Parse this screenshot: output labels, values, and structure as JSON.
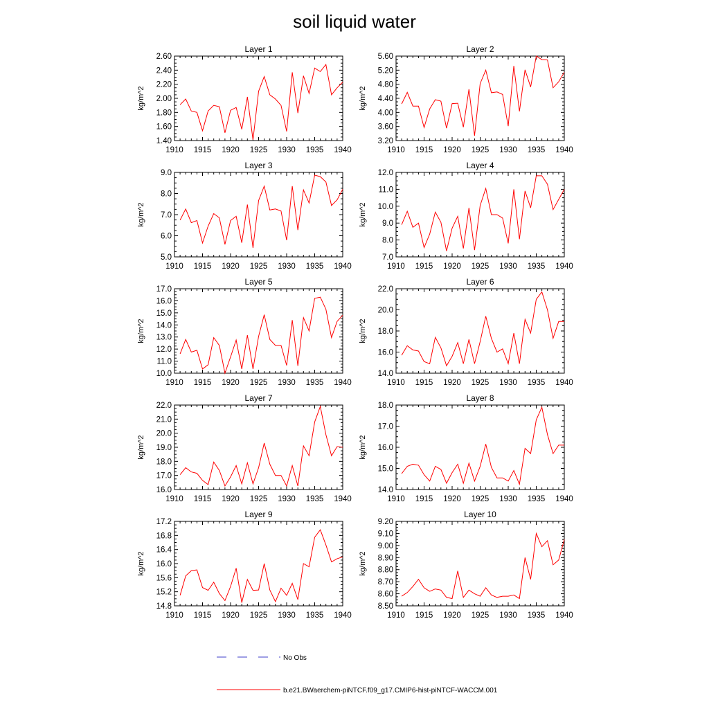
{
  "figure": {
    "title": "soil liquid water",
    "legend": [
      {
        "label": "No Obs",
        "color": "#3c3cc8",
        "style": "dashed"
      },
      {
        "label": "b.e21.BWaerchem-piNTCF.f09_g17.CMIP6-hist-piNTCF-WACCM.001",
        "color": "#ff0000",
        "style": "solid"
      }
    ]
  },
  "chart_data": [
    {
      "type": "line",
      "title": "Layer 1",
      "ylabel": "kg/m^2",
      "xlim": [
        1910,
        1940
      ],
      "xticks": [
        1910,
        1915,
        1920,
        1925,
        1930,
        1935,
        1940
      ],
      "ylim": [
        1.4,
        2.6
      ],
      "yticks": [
        "1.40",
        "1.60",
        "1.80",
        "2.00",
        "2.20",
        "2.40",
        "2.60"
      ],
      "series": [
        {
          "color": "#ff0000",
          "x": [
            1911,
            1912,
            1913,
            1914,
            1915,
            1916,
            1917,
            1918,
            1919,
            1920,
            1921,
            1922,
            1923,
            1924,
            1925,
            1926,
            1927,
            1928,
            1929,
            1930,
            1931,
            1932,
            1933,
            1934,
            1935,
            1936,
            1937,
            1938,
            1939,
            1940
          ],
          "y": [
            1.91,
            1.99,
            1.82,
            1.8,
            1.54,
            1.82,
            1.9,
            1.88,
            1.51,
            1.83,
            1.87,
            1.56,
            2.02,
            1.41,
            2.1,
            2.31,
            2.05,
            1.99,
            1.9,
            1.53,
            2.37,
            1.79,
            2.32,
            2.07,
            2.43,
            2.38,
            2.48,
            2.05,
            2.15,
            2.23
          ]
        }
      ]
    },
    {
      "type": "line",
      "title": "Layer 2",
      "ylabel": "kg/m^2",
      "xlim": [
        1910,
        1940
      ],
      "xticks": [
        1910,
        1915,
        1920,
        1925,
        1930,
        1935,
        1940
      ],
      "ylim": [
        3.2,
        5.6
      ],
      "yticks": [
        "3.20",
        "3.60",
        "4.00",
        "4.40",
        "4.80",
        "5.20",
        "5.60"
      ],
      "series": [
        {
          "color": "#ff0000",
          "x": [
            1911,
            1912,
            1913,
            1914,
            1915,
            1916,
            1917,
            1918,
            1919,
            1920,
            1921,
            1922,
            1923,
            1924,
            1925,
            1926,
            1927,
            1928,
            1929,
            1930,
            1931,
            1932,
            1933,
            1934,
            1935,
            1936,
            1937,
            1938,
            1939,
            1940
          ],
          "y": [
            4.24,
            4.57,
            4.18,
            4.18,
            3.57,
            4.1,
            4.36,
            4.32,
            3.55,
            4.25,
            4.26,
            3.58,
            4.66,
            3.34,
            4.82,
            5.2,
            4.56,
            4.58,
            4.51,
            3.61,
            5.32,
            4.03,
            5.21,
            4.72,
            5.6,
            5.5,
            5.49,
            4.7,
            4.87,
            5.14
          ]
        }
      ]
    },
    {
      "type": "line",
      "title": "Layer 3",
      "ylabel": "kg/m^2",
      "xlim": [
        1910,
        1940
      ],
      "xticks": [
        1910,
        1915,
        1920,
        1925,
        1930,
        1935,
        1940
      ],
      "ylim": [
        5.0,
        9.0
      ],
      "yticks": [
        "5.0",
        "6.0",
        "7.0",
        "8.0",
        "9.0"
      ],
      "series": [
        {
          "color": "#ff0000",
          "x": [
            1911,
            1912,
            1913,
            1914,
            1915,
            1916,
            1917,
            1918,
            1919,
            1920,
            1921,
            1922,
            1923,
            1924,
            1925,
            1926,
            1927,
            1928,
            1929,
            1930,
            1931,
            1932,
            1933,
            1934,
            1935,
            1936,
            1937,
            1938,
            1939,
            1940
          ],
          "y": [
            6.74,
            7.27,
            6.62,
            6.72,
            5.66,
            6.46,
            7.05,
            6.85,
            5.59,
            6.72,
            6.92,
            5.67,
            7.48,
            5.43,
            7.67,
            8.35,
            7.22,
            7.27,
            7.17,
            5.79,
            8.35,
            6.27,
            8.17,
            7.55,
            8.87,
            8.8,
            8.55,
            7.43,
            7.7,
            8.2
          ]
        }
      ]
    },
    {
      "type": "line",
      "title": "Layer 4",
      "ylabel": "kg/m^2",
      "xlim": [
        1910,
        1940
      ],
      "xticks": [
        1910,
        1915,
        1920,
        1925,
        1930,
        1935,
        1940
      ],
      "ylim": [
        7.0,
        12.0
      ],
      "yticks": [
        "7.0",
        "8.0",
        "9.0",
        "10.0",
        "11.0",
        "12.0"
      ],
      "series": [
        {
          "color": "#ff0000",
          "x": [
            1911,
            1912,
            1913,
            1914,
            1915,
            1916,
            1917,
            1918,
            1919,
            1920,
            1921,
            1922,
            1923,
            1924,
            1925,
            1926,
            1927,
            1928,
            1929,
            1930,
            1931,
            1932,
            1933,
            1934,
            1935,
            1936,
            1937,
            1938,
            1939,
            1940
          ],
          "y": [
            8.9,
            9.7,
            8.75,
            9.0,
            7.55,
            8.35,
            9.65,
            9.05,
            7.35,
            8.7,
            9.4,
            7.5,
            9.9,
            7.4,
            10.05,
            11.05,
            9.5,
            9.5,
            9.3,
            7.8,
            11.0,
            8.05,
            10.9,
            9.9,
            11.8,
            11.8,
            11.3,
            9.8,
            10.4,
            11.0
          ]
        }
      ]
    },
    {
      "type": "line",
      "title": "Layer 5",
      "ylabel": "kg/m^2",
      "xlim": [
        1910,
        1940
      ],
      "xticks": [
        1910,
        1915,
        1920,
        1925,
        1930,
        1935,
        1940
      ],
      "ylim": [
        10.0,
        17.0
      ],
      "yticks": [
        "10.0",
        "11.0",
        "12.0",
        "13.0",
        "14.0",
        "15.0",
        "16.0",
        "17.0"
      ],
      "series": [
        {
          "color": "#ff0000",
          "x": [
            1911,
            1912,
            1913,
            1914,
            1915,
            1916,
            1917,
            1918,
            1919,
            1920,
            1921,
            1922,
            1923,
            1924,
            1925,
            1926,
            1927,
            1928,
            1929,
            1930,
            1931,
            1932,
            1933,
            1934,
            1935,
            1936,
            1937,
            1938,
            1939,
            1940
          ],
          "y": [
            11.6,
            12.8,
            11.75,
            11.9,
            10.35,
            10.7,
            12.95,
            12.3,
            10.0,
            11.35,
            12.75,
            10.35,
            13.15,
            10.35,
            13.05,
            14.85,
            12.8,
            12.3,
            12.3,
            10.65,
            14.4,
            10.6,
            14.6,
            13.5,
            16.2,
            16.3,
            15.3,
            12.95,
            14.3,
            14.8
          ]
        }
      ]
    },
    {
      "type": "line",
      "title": "Layer 6",
      "ylabel": "kg/m^2",
      "xlim": [
        1910,
        1940
      ],
      "xticks": [
        1910,
        1915,
        1920,
        1925,
        1930,
        1935,
        1940
      ],
      "ylim": [
        14.0,
        22.0
      ],
      "yticks": [
        "14.0",
        "16.0",
        "18.0",
        "20.0",
        "22.0"
      ],
      "series": [
        {
          "color": "#ff0000",
          "x": [
            1911,
            1912,
            1913,
            1914,
            1915,
            1916,
            1917,
            1918,
            1919,
            1920,
            1921,
            1922,
            1923,
            1924,
            1925,
            1926,
            1927,
            1928,
            1929,
            1930,
            1931,
            1932,
            1933,
            1934,
            1935,
            1936,
            1937,
            1938,
            1939,
            1940
          ],
          "y": [
            15.7,
            16.6,
            16.2,
            16.1,
            15.1,
            14.9,
            17.4,
            16.4,
            14.7,
            15.6,
            16.9,
            14.9,
            17.2,
            14.9,
            17.0,
            19.4,
            17.3,
            16.0,
            16.3,
            14.9,
            17.8,
            14.9,
            19.1,
            17.8,
            21.0,
            21.7,
            20.0,
            17.3,
            18.9,
            18.9
          ]
        }
      ]
    },
    {
      "type": "line",
      "title": "Layer 7",
      "ylabel": "kg/m^2",
      "xlim": [
        1910,
        1940
      ],
      "xticks": [
        1910,
        1915,
        1920,
        1925,
        1930,
        1935,
        1940
      ],
      "ylim": [
        16.0,
        22.0
      ],
      "yticks": [
        "16.0",
        "17.0",
        "18.0",
        "19.0",
        "20.0",
        "21.0",
        "22.0"
      ],
      "series": [
        {
          "color": "#ff0000",
          "x": [
            1911,
            1912,
            1913,
            1914,
            1915,
            1916,
            1917,
            1918,
            1919,
            1920,
            1921,
            1922,
            1923,
            1924,
            1925,
            1926,
            1927,
            1928,
            1929,
            1930,
            1931,
            1932,
            1933,
            1934,
            1935,
            1936,
            1937,
            1938,
            1939,
            1940
          ],
          "y": [
            17.05,
            17.55,
            17.25,
            17.15,
            16.65,
            16.35,
            17.95,
            17.35,
            16.25,
            16.9,
            17.7,
            16.4,
            17.9,
            16.4,
            17.55,
            19.3,
            17.8,
            17.0,
            17.0,
            16.25,
            17.7,
            16.25,
            19.1,
            18.4,
            20.8,
            21.9,
            19.9,
            18.4,
            19.05,
            19.0
          ]
        }
      ]
    },
    {
      "type": "line",
      "title": "Layer 8",
      "ylabel": "kg/m^2",
      "xlim": [
        1910,
        1940
      ],
      "xticks": [
        1910,
        1915,
        1920,
        1925,
        1930,
        1935,
        1940
      ],
      "ylim": [
        14.0,
        18.0
      ],
      "yticks": [
        "14.0",
        "15.0",
        "16.0",
        "17.0",
        "18.0"
      ],
      "series": [
        {
          "color": "#ff0000",
          "x": [
            1911,
            1912,
            1913,
            1914,
            1915,
            1916,
            1917,
            1918,
            1919,
            1920,
            1921,
            1922,
            1923,
            1924,
            1925,
            1926,
            1927,
            1928,
            1929,
            1930,
            1931,
            1932,
            1933,
            1934,
            1935,
            1936,
            1937,
            1938,
            1939,
            1940
          ],
          "y": [
            14.75,
            15.1,
            15.2,
            15.15,
            14.7,
            14.4,
            15.1,
            14.95,
            14.3,
            14.8,
            15.2,
            14.3,
            15.25,
            14.4,
            15.1,
            16.15,
            15.05,
            14.55,
            14.55,
            14.4,
            14.9,
            14.25,
            15.95,
            15.7,
            17.3,
            17.9,
            16.6,
            15.7,
            16.1,
            16.1
          ]
        }
      ]
    },
    {
      "type": "line",
      "title": "Layer 9",
      "ylabel": "kg/m^2",
      "xlim": [
        1910,
        1940
      ],
      "xticks": [
        1910,
        1915,
        1920,
        1925,
        1930,
        1935,
        1940
      ],
      "ylim": [
        14.8,
        17.2
      ],
      "yticks": [
        "14.8",
        "15.2",
        "15.6",
        "16.0",
        "16.4",
        "16.8",
        "17.2"
      ],
      "series": [
        {
          "color": "#ff0000",
          "x": [
            1911,
            1912,
            1913,
            1914,
            1915,
            1916,
            1917,
            1918,
            1919,
            1920,
            1921,
            1922,
            1923,
            1924,
            1925,
            1926,
            1927,
            1928,
            1929,
            1930,
            1931,
            1932,
            1933,
            1934,
            1935,
            1936,
            1937,
            1938,
            1939,
            1940
          ],
          "y": [
            15.1,
            15.65,
            15.8,
            15.82,
            15.32,
            15.24,
            15.47,
            15.15,
            14.95,
            15.35,
            15.87,
            14.89,
            15.55,
            15.24,
            15.25,
            16.0,
            15.25,
            14.92,
            15.3,
            15.1,
            15.44,
            14.98,
            16.0,
            15.91,
            16.75,
            16.96,
            16.53,
            16.05,
            16.14,
            16.19
          ]
        }
      ]
    },
    {
      "type": "line",
      "title": "Layer 10",
      "ylabel": "kg/m^2",
      "xlim": [
        1910,
        1940
      ],
      "xticks": [
        1910,
        1915,
        1920,
        1925,
        1930,
        1935,
        1940
      ],
      "ylim": [
        8.5,
        9.2
      ],
      "yticks": [
        "8.50",
        "8.60",
        "8.70",
        "8.80",
        "8.90",
        "9.00",
        "9.10",
        "9.20"
      ],
      "series": [
        {
          "color": "#ff0000",
          "x": [
            1911,
            1912,
            1913,
            1914,
            1915,
            1916,
            1917,
            1918,
            1919,
            1920,
            1921,
            1922,
            1923,
            1924,
            1925,
            1926,
            1927,
            1928,
            1929,
            1930,
            1931,
            1932,
            1933,
            1934,
            1935,
            1936,
            1937,
            1938,
            1939,
            1940
          ],
          "y": [
            8.58,
            8.61,
            8.66,
            8.72,
            8.65,
            8.62,
            8.64,
            8.63,
            8.57,
            8.56,
            8.79,
            8.57,
            8.63,
            8.6,
            8.58,
            8.65,
            8.59,
            8.57,
            8.58,
            8.58,
            8.59,
            8.56,
            8.9,
            8.72,
            9.1,
            8.99,
            9.04,
            8.84,
            8.88,
            9.05
          ]
        }
      ]
    }
  ]
}
